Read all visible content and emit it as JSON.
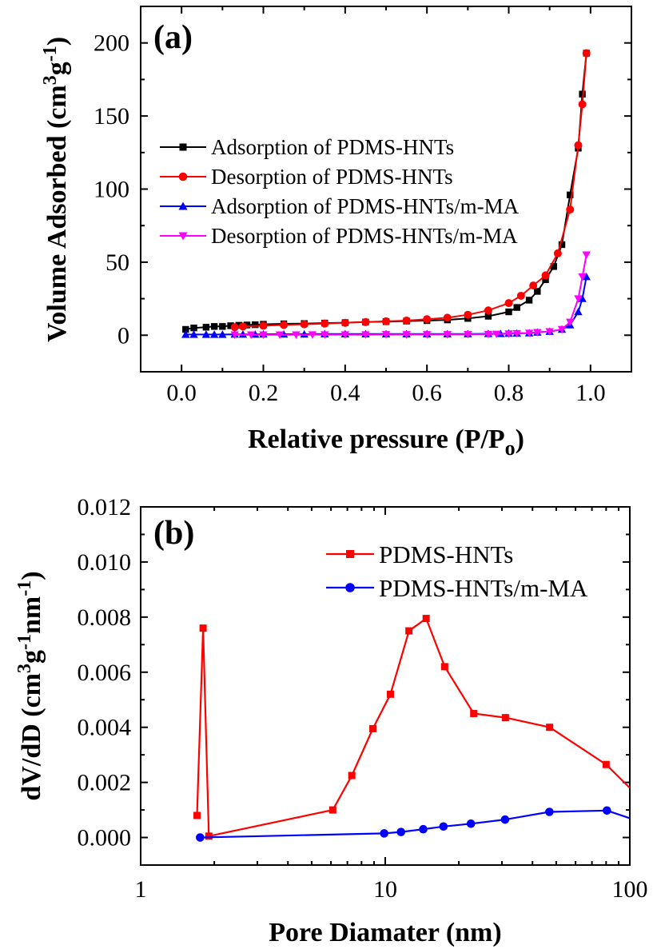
{
  "chart_data": [
    {
      "panel": "(a)",
      "type": "line",
      "xlabel": "Relative pressure (P/P",
      "xlabel_sub": "o",
      "xlabel_close": ")",
      "ylabel_parts": [
        "Volume Adsorbed (cm",
        "3",
        "g",
        "-1",
        ")"
      ],
      "xlim": [
        -0.1,
        1.1
      ],
      "ylim": [
        -25,
        225
      ],
      "xticks": [
        "0.0",
        "0.2",
        "0.4",
        "0.6",
        "0.8",
        "1.0"
      ],
      "yticks": [
        "0",
        "50",
        "100",
        "150",
        "200"
      ],
      "legend_position": "center-left",
      "grid": false,
      "series": [
        {
          "name": "Adsorption of PDMS-HNTs",
          "color": "#000000",
          "marker": "square",
          "x": [
            0.01,
            0.03,
            0.06,
            0.08,
            0.1,
            0.12,
            0.14,
            0.16,
            0.18,
            0.2,
            0.25,
            0.3,
            0.35,
            0.4,
            0.45,
            0.5,
            0.55,
            0.6,
            0.65,
            0.7,
            0.75,
            0.8,
            0.82,
            0.85,
            0.87,
            0.89,
            0.91,
            0.93,
            0.95,
            0.97,
            0.98,
            0.99
          ],
          "y": [
            4,
            5,
            5.5,
            6,
            6,
            6.5,
            6.8,
            7,
            7.2,
            7.5,
            7.8,
            8,
            8.3,
            8.6,
            9,
            9.3,
            9.7,
            10,
            10.5,
            11.5,
            13,
            16,
            19,
            24,
            30,
            38,
            47,
            62,
            96,
            128,
            165,
            193
          ]
        },
        {
          "name": "Desorption of PDMS-HNTs",
          "color": "#ff0000",
          "marker": "circle",
          "x": [
            0.99,
            0.98,
            0.97,
            0.95,
            0.92,
            0.89,
            0.86,
            0.83,
            0.8,
            0.75,
            0.7,
            0.65,
            0.6,
            0.55,
            0.5,
            0.45,
            0.4,
            0.35,
            0.3,
            0.25,
            0.2,
            0.15,
            0.13
          ],
          "y": [
            193,
            158,
            130,
            86,
            56,
            41,
            34,
            27,
            22,
            17,
            14,
            12,
            11,
            10,
            9.5,
            9,
            8.5,
            8,
            7.5,
            7,
            6.5,
            6,
            5.5
          ]
        },
        {
          "name": "Adsorption of PDMS-HNTs/m-MA",
          "color": "#0000ff",
          "marker": "triangle-up",
          "x": [
            0.01,
            0.03,
            0.06,
            0.08,
            0.1,
            0.13,
            0.15,
            0.18,
            0.2,
            0.25,
            0.3,
            0.35,
            0.4,
            0.45,
            0.5,
            0.55,
            0.6,
            0.65,
            0.7,
            0.75,
            0.78,
            0.8,
            0.82,
            0.85,
            0.87,
            0.9,
            0.93,
            0.95,
            0.97,
            0.98,
            0.99
          ],
          "y": [
            0.5,
            0.5,
            0.5,
            0.5,
            0.5,
            0.6,
            0.6,
            0.6,
            0.7,
            0.7,
            0.7,
            0.8,
            0.8,
            0.8,
            0.8,
            0.8,
            0.8,
            0.8,
            0.9,
            1,
            1,
            1.2,
            1.3,
            1.5,
            2,
            2.5,
            4,
            7,
            16,
            25,
            40
          ]
        },
        {
          "name": "Desorption of PDMS-HNTs/m-MA",
          "color": "#ff00ff",
          "marker": "triangle-down",
          "x": [
            0.99,
            0.98,
            0.97,
            0.95,
            0.93,
            0.9,
            0.87,
            0.85,
            0.82,
            0.8,
            0.77,
            0.75,
            0.7,
            0.65,
            0.6,
            0.55,
            0.5,
            0.45,
            0.4,
            0.35,
            0.32,
            0.28,
            0.24,
            0.2,
            0.17,
            0.13
          ],
          "y": [
            55,
            40,
            25,
            9,
            4,
            2.5,
            2,
            1.5,
            1.2,
            1,
            0.8,
            0.7,
            0.6,
            0.5,
            0.5,
            0.5,
            0.5,
            0.4,
            0.4,
            0.4,
            0.4,
            0.3,
            0.3,
            0.3,
            0.3,
            0.3
          ]
        }
      ]
    },
    {
      "panel": "(b)",
      "type": "line",
      "xscale": "log",
      "xlabel": "Pore Diamater (nm)",
      "ylabel_parts": [
        "dV/dD (cm",
        "3",
        "g",
        "-1",
        "nm",
        "-1",
        ")"
      ],
      "xlim": [
        1,
        100
      ],
      "ylim": [
        -0.001,
        0.012
      ],
      "xticks": [
        "1",
        "10",
        "100"
      ],
      "yticks": [
        "0.000",
        "0.002",
        "0.004",
        "0.006",
        "0.008",
        "0.010",
        "0.012"
      ],
      "legend_position": "top-right",
      "grid": false,
      "series": [
        {
          "name": "PDMS-HNTs",
          "color": "#ff0000",
          "marker": "square",
          "x": [
            1.7,
            1.8,
            1.9,
            6.1,
            7.3,
            8.9,
            10.5,
            12.5,
            14.7,
            17.5,
            23,
            31,
            47,
            80,
            100
          ],
          "y": [
            0.0008,
            0.0076,
            5e-05,
            0.001,
            0.00225,
            0.00395,
            0.0052,
            0.0075,
            0.00795,
            0.0062,
            0.0045,
            0.00435,
            0.004,
            0.00265,
            0.0018
          ]
        },
        {
          "name": "PDMS-HNTs/m-MA",
          "color": "#0000ff",
          "marker": "circle",
          "x": [
            1.75,
            9.9,
            11.6,
            14.3,
            17.3,
            22.4,
            30.9,
            46.9,
            80.6,
            100
          ],
          "y": [
            0.0,
            0.00015,
            0.0002,
            0.0003,
            0.0004,
            0.0005,
            0.00065,
            0.00093,
            0.00098,
            0.0007
          ]
        }
      ]
    }
  ]
}
